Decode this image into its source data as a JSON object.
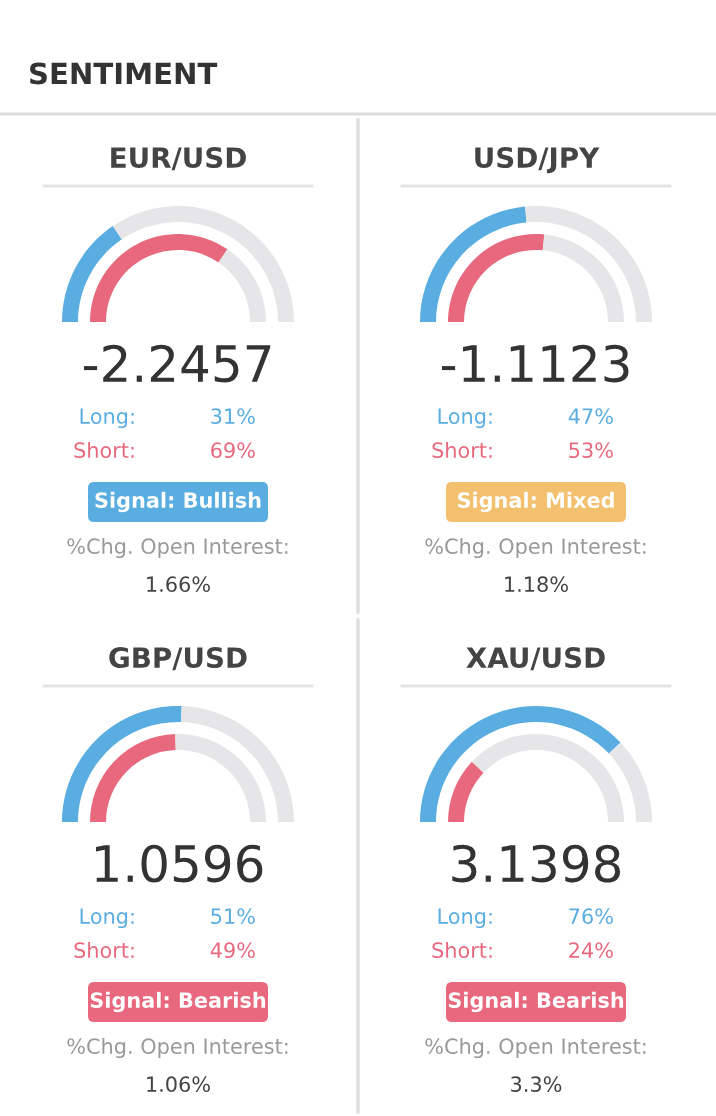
{
  "chart_data": [
    {
      "type": "other",
      "title": "SENTIMENT"
    },
    {
      "type": "donut",
      "title": "EUR/USD",
      "annotations": [
        "-2.2457",
        "31%",
        "69%",
        "Signal: Bullish",
        "%Chg. Open Interest:",
        "1.66%"
      ],
      "series": [
        {
          "name": "Long:",
          "color": "#5aade0",
          "colors": [
            "#5aade0",
            "#e6e6e8"
          ],
          "values": [
            31,
            69
          ]
        },
        {
          "name": "Short:",
          "color": "#e8687e",
          "colors": [
            "#e8687e",
            "#e6e6e8"
          ],
          "values": [
            69,
            31
          ]
        }
      ]
    },
    {
      "type": "donut",
      "title": "USD/JPY",
      "annotations": [
        "-1.1123",
        "47%",
        "53%",
        "Signal: Mixed",
        "%Chg. Open Interest:",
        "1.18%"
      ],
      "series": [
        {
          "name": "Long:",
          "color": "#5aade0",
          "colors": [
            "#5aade0",
            "#e6e6e8"
          ],
          "values": [
            47,
            53
          ]
        },
        {
          "name": "Short:",
          "color": "#e8687e",
          "colors": [
            "#e8687e",
            "#e6e6e8"
          ],
          "values": [
            53,
            47
          ]
        }
      ]
    },
    {
      "type": "donut",
      "title": "GBP/USD",
      "annotations": [
        "1.0596",
        "51%",
        "49%",
        "Signal: Bearish",
        "%Chg. Open Interest:",
        "1.06%"
      ],
      "series": [
        {
          "name": "Long:",
          "color": "#5aade0",
          "colors": [
            "#5aade0",
            "#e6e6e8"
          ],
          "values": [
            51,
            49
          ]
        },
        {
          "name": "Short:",
          "color": "#e8687e",
          "colors": [
            "#e8687e",
            "#e6e6e8"
          ],
          "values": [
            49,
            51
          ]
        }
      ]
    },
    {
      "type": "donut",
      "title": "XAU/USD",
      "annotations": [
        "3.1398",
        "76%",
        "24%",
        "Signal: Bearish",
        "%Chg. Open Interest:",
        "3.3%"
      ],
      "series": [
        {
          "name": "Long:",
          "color": "#5aade0",
          "colors": [
            "#5aade0",
            "#e6e6e8"
          ],
          "values": [
            76,
            24
          ]
        },
        {
          "name": "Short:",
          "color": "#e8687e",
          "colors": [
            "#e8687e",
            "#e6e6e8"
          ],
          "values": [
            24,
            76
          ]
        }
      ]
    }
  ]
}
